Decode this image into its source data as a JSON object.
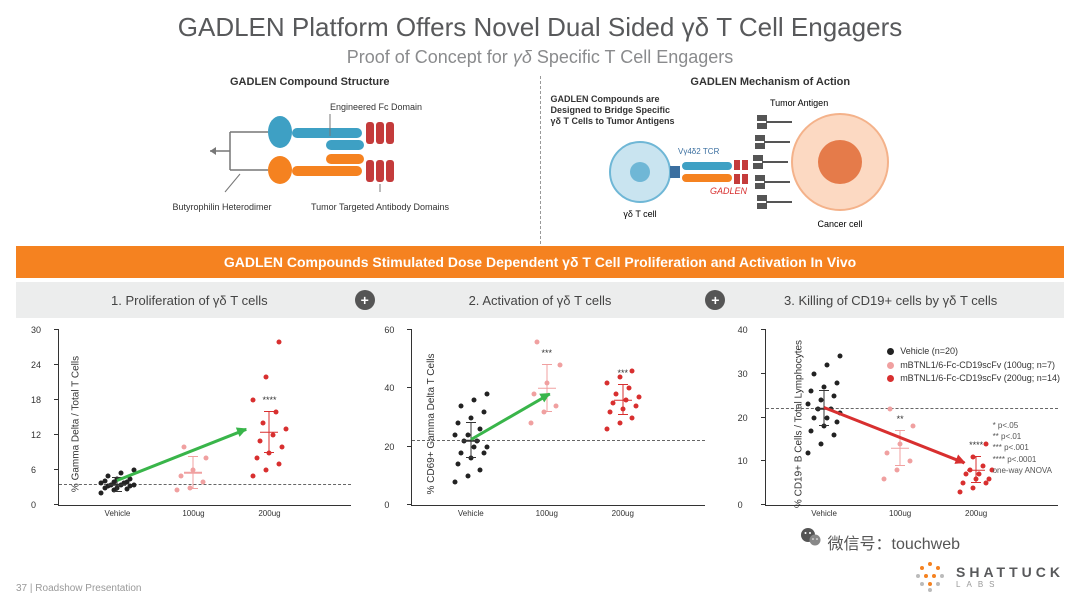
{
  "title": "GADLEN Platform Offers Novel Dual Sided γδ T Cell Engagers",
  "subtitle_pre": "Proof of Concept for ",
  "subtitle_em": "γδ",
  "subtitle_post": " Specific T Cell Engagers",
  "diagrams": {
    "structure": {
      "title": "GADLEN Compound Structure",
      "labels": {
        "fc": "Engineered Fc Domain",
        "hetero": "Butyrophilin Heterodimer",
        "ab": "Tumor Targeted Antibody Domains"
      },
      "colors": {
        "blue": "#3ea0c4",
        "orange": "#f58220",
        "red": "#c43b3b",
        "grey": "#777"
      }
    },
    "moa": {
      "title": "GADLEN Mechanism of Action",
      "bridge_label": "GADLEN Compounds are Designed to Bridge Specific γδ T Cells to Tumor Antigens",
      "tcell": "γδ T cell",
      "tcr": "Vγ4δ2 TCR",
      "gadlen": "GADLEN",
      "tumor_antigen": "Tumor Antigen",
      "cancer": "Cancer cell",
      "colors": {
        "tcell": "#6fb7d6",
        "cancer_outer": "#f4b28a",
        "cancer_inner": "#e57b4a",
        "receptor": "#555"
      }
    }
  },
  "orange_bar": "GADLEN Compounds Stimulated Dose Dependent γδ T Cell Proliferation and Activation In Vivo",
  "grey_bar": {
    "s1": "1. Proliferation of γδ T cells",
    "s2": "2. Activation of γδ T cells",
    "s3": "3. Killing of CD19+ cells by γδ T cells"
  },
  "legend_items": [
    {
      "label": "Vehicle (n=20)",
      "color": "#222"
    },
    {
      "label": "mBTNL1/6-Fc-CD19scFv (100ug; n=7)",
      "color": "#f0a0a0"
    },
    {
      "label": "mBTNL1/6-Fc-CD19scFv (200ug; n=14)",
      "color": "#d82f2f"
    }
  ],
  "sig_key": [
    "*    p<.05",
    "**   p<.01",
    "***  p<.001",
    "**** p<.0001",
    "one-way ANOVA"
  ],
  "charts": [
    {
      "ylabel": "% Gamma Delta / Total T Cells",
      "ylim": [
        0,
        30
      ],
      "yticks": [
        0,
        6,
        12,
        18,
        24,
        30
      ],
      "dash_y": 3.5,
      "arrow": {
        "color": "#39b54a",
        "from": [
          20,
          4
        ],
        "to": [
          66,
          13
        ]
      },
      "groups": [
        {
          "x": 20,
          "color": "#222",
          "mean": 3.5,
          "err": 1.2,
          "sig": "",
          "pts": [
            2,
            2.5,
            2.8,
            3,
            3,
            3.2,
            3.2,
            3.5,
            3.5,
            3.5,
            3.8,
            3.8,
            4,
            4,
            4.2,
            4.5,
            4.5,
            5,
            5.5,
            6
          ]
        },
        {
          "x": 46,
          "color": "#f0a0a0",
          "mean": 5.5,
          "err": 2.8,
          "sig": "",
          "pts": [
            2.5,
            3,
            4,
            5,
            6,
            8,
            10
          ]
        },
        {
          "x": 72,
          "color": "#d82f2f",
          "mean": 12.5,
          "err": 3.5,
          "sig": "****",
          "pts": [
            5,
            6,
            7,
            8,
            9,
            10,
            11,
            12,
            13,
            14,
            16,
            18,
            22,
            28
          ]
        }
      ]
    },
    {
      "ylabel": "% CD69+ Gamma Delta T Cells",
      "ylim": [
        0,
        60
      ],
      "yticks": [
        0,
        20,
        40,
        60
      ],
      "dash_y": 22,
      "arrow": {
        "color": "#39b54a",
        "from": [
          20,
          22
        ],
        "to": [
          48,
          38
        ]
      },
      "groups": [
        {
          "x": 20,
          "color": "#222",
          "mean": 22,
          "err": 6,
          "sig": "",
          "pts": [
            8,
            10,
            12,
            14,
            16,
            18,
            18,
            20,
            20,
            22,
            22,
            24,
            24,
            26,
            28,
            30,
            32,
            34,
            36,
            38
          ]
        },
        {
          "x": 46,
          "color": "#f0a0a0",
          "mean": 40,
          "err": 8,
          "sig": "***",
          "pts": [
            28,
            32,
            34,
            38,
            42,
            48,
            56
          ]
        },
        {
          "x": 72,
          "color": "#d82f2f",
          "mean": 36,
          "err": 5,
          "sig": "***",
          "pts": [
            26,
            28,
            30,
            32,
            33,
            34,
            35,
            36,
            37,
            38,
            40,
            42,
            44,
            46
          ]
        }
      ]
    },
    {
      "ylabel": "% CD19+ B Cells / Total Lymphocytes",
      "ylim": [
        0,
        40
      ],
      "yticks": [
        0,
        10,
        20,
        30,
        40
      ],
      "dash_y": 22,
      "arrow": {
        "color": "#d82f2f",
        "from": [
          20,
          22
        ],
        "to": [
          70,
          9
        ]
      },
      "groups": [
        {
          "x": 20,
          "color": "#222",
          "mean": 22,
          "err": 4,
          "sig": "",
          "pts": [
            12,
            14,
            16,
            17,
            18,
            19,
            20,
            20,
            21,
            22,
            22,
            23,
            24,
            25,
            26,
            27,
            28,
            30,
            32,
            34
          ]
        },
        {
          "x": 46,
          "color": "#f0a0a0",
          "mean": 13,
          "err": 4,
          "sig": "**",
          "pts": [
            6,
            8,
            10,
            12,
            14,
            18,
            22
          ]
        },
        {
          "x": 72,
          "color": "#d82f2f",
          "mean": 8,
          "err": 3,
          "sig": "****",
          "pts": [
            3,
            4,
            5,
            5,
            6,
            6,
            7,
            7,
            8,
            8,
            9,
            10,
            11,
            14
          ]
        }
      ]
    }
  ],
  "xlabels": [
    "Vehicle",
    "100ug",
    "200ug"
  ],
  "footer": {
    "page": "37",
    "sep": " | ",
    "name": "Roadshow Presentation"
  },
  "brand": {
    "name": "SHATTUCK",
    "sub": "LABS"
  },
  "watermark": "微信号：touchweb"
}
